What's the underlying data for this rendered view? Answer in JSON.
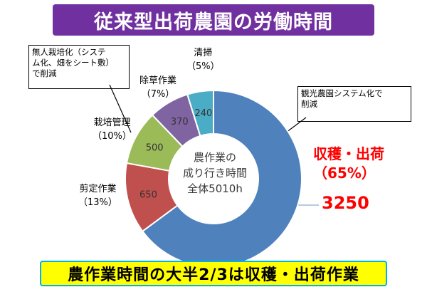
{
  "title": "従来型出荷農園の労働時間",
  "note_left": [
    "無人栽培化（システ",
    "ム化、畑をシート敷）",
    "で削減"
  ],
  "note_right": [
    "観光農園システム化で",
    "削減"
  ],
  "center_lines": [
    "農作業の",
    "成り行き時間",
    "全体5010h"
  ],
  "harvest": {
    "name": "収穫・出荷",
    "pct": "（65%）",
    "value": "3250"
  },
  "bottom_banner": "農作業時間の大半2/3は収穫・出荷作業",
  "chart_data": {
    "type": "pie",
    "donut": true,
    "total_label": "全体5010h",
    "slices": [
      {
        "name": "収穫・出荷",
        "value": 3250,
        "pct": "（65%）",
        "color": "#4f81bd"
      },
      {
        "name": "剪定作業",
        "value": 650,
        "pct": "（13%）",
        "color": "#c0504d"
      },
      {
        "name": "栽培管理",
        "value": 500,
        "pct": "（10%）",
        "color": "#9bbb59"
      },
      {
        "name": "除草作業",
        "value": 370,
        "pct": "（7%）",
        "color": "#8064a2"
      },
      {
        "name": "清掃",
        "value": 240,
        "pct": "（5%）",
        "color": "#4bacc6"
      }
    ]
  }
}
